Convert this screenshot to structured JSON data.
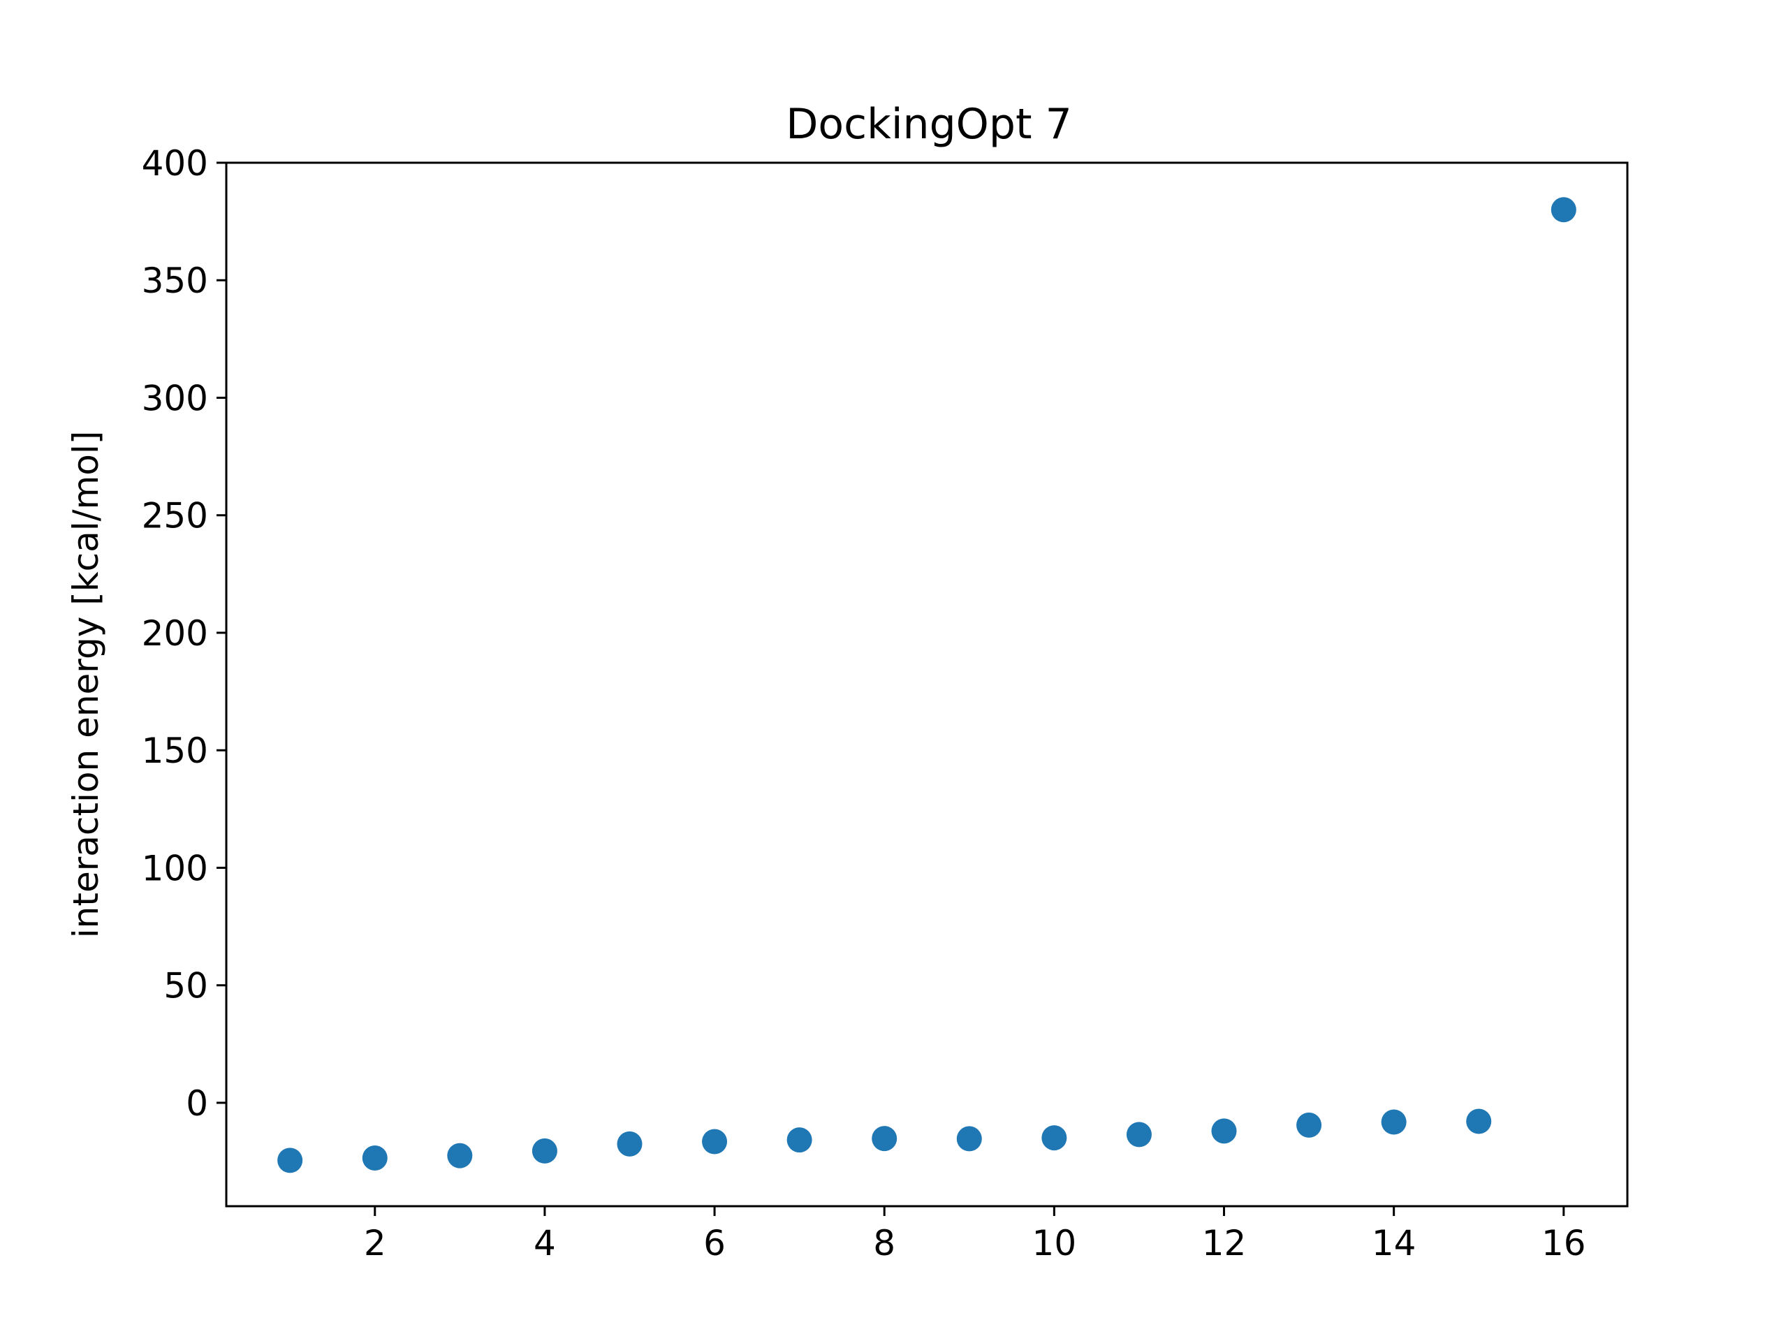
{
  "chart_data": {
    "type": "scatter",
    "title": "DockingOpt 7",
    "xlabel": "",
    "ylabel": "interaction energy [kcal/mol]",
    "xlim": [
      0.25,
      16.75
    ],
    "ylim": [
      -44,
      400
    ],
    "xticks": [
      2,
      4,
      6,
      8,
      10,
      12,
      14,
      16
    ],
    "xtick_labels": [
      "2",
      "4",
      "6",
      "8",
      "10",
      "12",
      "14",
      "16"
    ],
    "yticks": [
      0,
      50,
      100,
      150,
      200,
      250,
      300,
      350,
      400
    ],
    "ytick_labels": [
      "0",
      "50",
      "100",
      "150",
      "200",
      "250",
      "300",
      "350",
      "400"
    ],
    "grid": false,
    "colors": {
      "marker": "#1f77b4",
      "axes": "#000000"
    },
    "series": [
      {
        "x": [
          1,
          2,
          3,
          4,
          5,
          6,
          7,
          8,
          9,
          10,
          11,
          12,
          13,
          14,
          15,
          16
        ],
        "y": [
          -24.5,
          -23.5,
          -22.5,
          -20.5,
          -17.5,
          -16.5,
          -15.8,
          -15.2,
          -15.3,
          -14.9,
          -13.5,
          -12,
          -9.5,
          -8.2,
          -7.9,
          380
        ]
      }
    ]
  }
}
